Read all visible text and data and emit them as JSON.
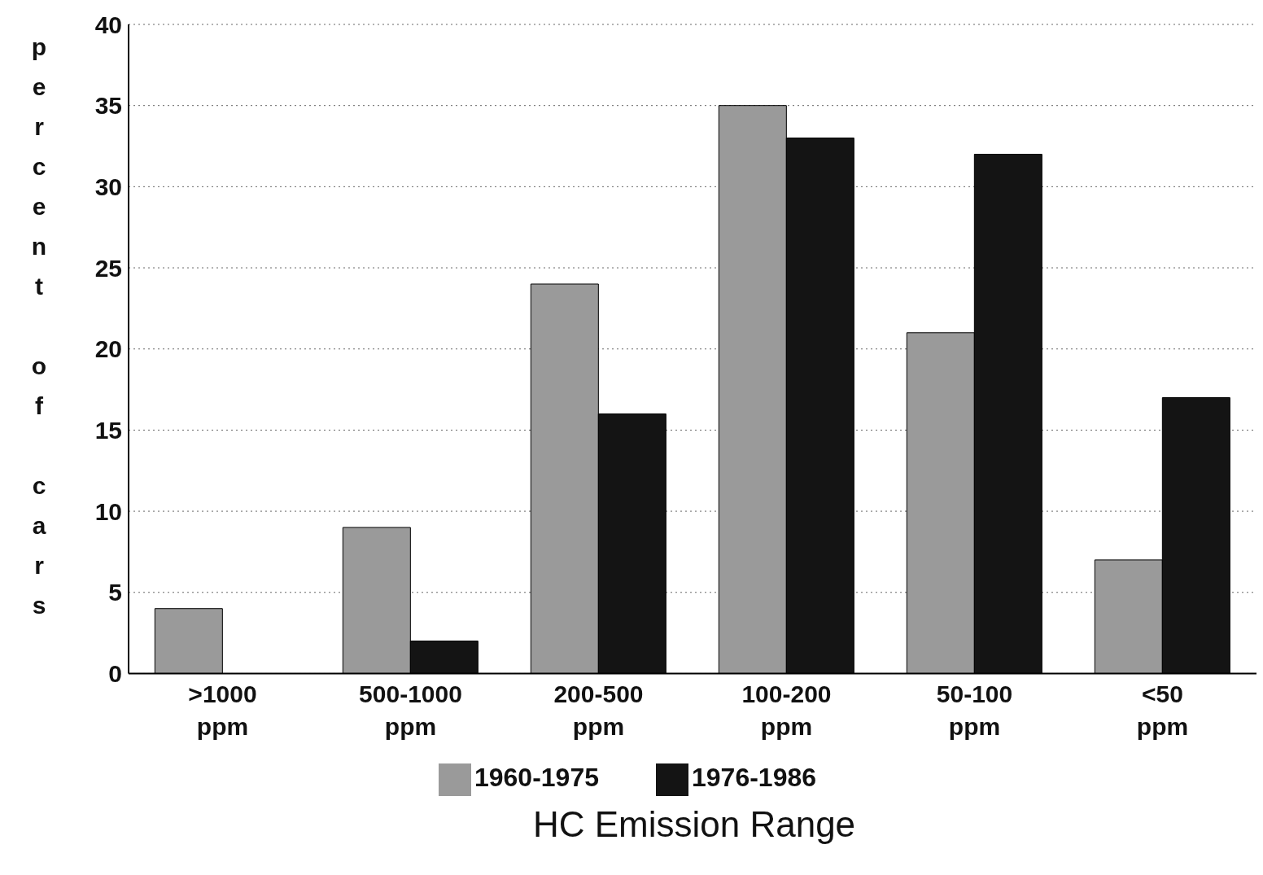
{
  "chart_data": {
    "type": "bar",
    "xlabel": "HC Emission Range",
    "ylabel": "percent of cars",
    "categories": [
      ">1000 ppm",
      "500-1000 ppm",
      "200-500 ppm",
      "100-200 ppm",
      "50-100 ppm",
      "<50 ppm"
    ],
    "series": [
      {
        "name": "1960-1975",
        "color": "#9a9a9a",
        "values": [
          4,
          9,
          24,
          35,
          21,
          7
        ]
      },
      {
        "name": "1976-1986",
        "color": "#141414",
        "values": [
          0,
          2,
          16,
          33,
          32,
          17
        ]
      }
    ],
    "ylim": [
      0,
      40
    ],
    "yticks": [
      0,
      5,
      10,
      15,
      20,
      25,
      30,
      35,
      40
    ],
    "grid": "y",
    "legend": "bottom"
  }
}
